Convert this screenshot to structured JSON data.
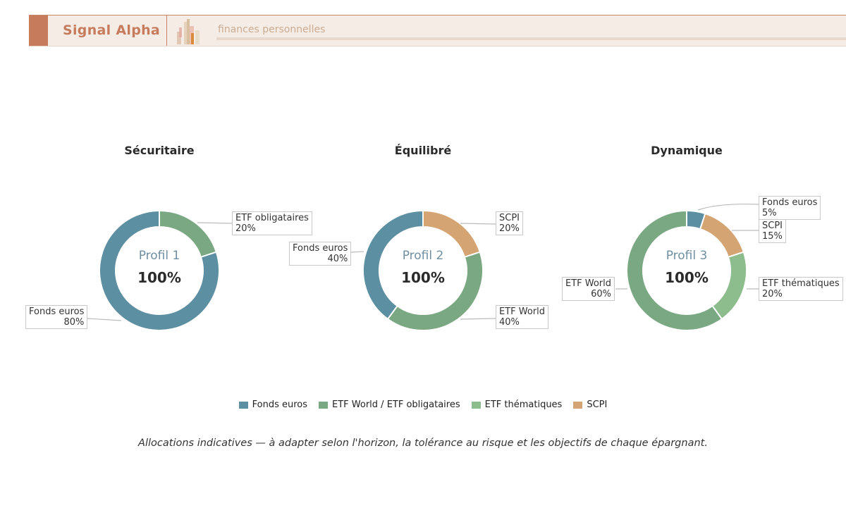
{
  "header": {
    "brand": "Signal Alpha",
    "tagline": "finances personnelles",
    "logo_icon": "bar-chart-logo-icon"
  },
  "colors": {
    "Fonds euros": "#5b8fa1",
    "ETF World / ETF obligataires": "#7aa882",
    "ETF thématiques": "#8dbd8d",
    "SCPI": "#d4a472",
    "accent": "#c67c5c"
  },
  "chart_data": [
    {
      "type": "pie",
      "title": "Sécuritaire",
      "center_label": "Profil 1",
      "center_value": "100%",
      "slices": [
        {
          "label": "ETF obligataires",
          "value": 20,
          "value_label": "20%",
          "color_key": "ETF World / ETF obligataires"
        },
        {
          "label": "Fonds euros",
          "value": 80,
          "value_label": "80%",
          "color_key": "Fonds euros"
        }
      ]
    },
    {
      "type": "pie",
      "title": "Équilibré",
      "center_label": "Profil 2",
      "center_value": "100%",
      "slices": [
        {
          "label": "SCPI",
          "value": 20,
          "value_label": "20%",
          "color_key": "SCPI"
        },
        {
          "label": "ETF World",
          "value": 40,
          "value_label": "40%",
          "color_key": "ETF World / ETF obligataires"
        },
        {
          "label": "Fonds euros",
          "value": 40,
          "value_label": "40%",
          "color_key": "Fonds euros"
        }
      ]
    },
    {
      "type": "pie",
      "title": "Dynamique",
      "center_label": "Profil 3",
      "center_value": "100%",
      "slices": [
        {
          "label": "Fonds euros",
          "value": 5,
          "value_label": "5%",
          "color_key": "Fonds euros"
        },
        {
          "label": "SCPI",
          "value": 15,
          "value_label": "15%",
          "color_key": "SCPI"
        },
        {
          "label": "ETF thématiques",
          "value": 20,
          "value_label": "20%",
          "color_key": "ETF thématiques"
        },
        {
          "label": "ETF World",
          "value": 60,
          "value_label": "60%",
          "color_key": "ETF World / ETF obligataires"
        }
      ]
    }
  ],
  "legend": {
    "placement": "bottom",
    "items": [
      "Fonds euros",
      "ETF World / ETF obligataires",
      "ETF thématiques",
      "SCPI"
    ]
  },
  "footnote": "Allocations indicatives — à adapter selon l'horizon, la tolérance au risque et les objectifs de chaque épargnant."
}
